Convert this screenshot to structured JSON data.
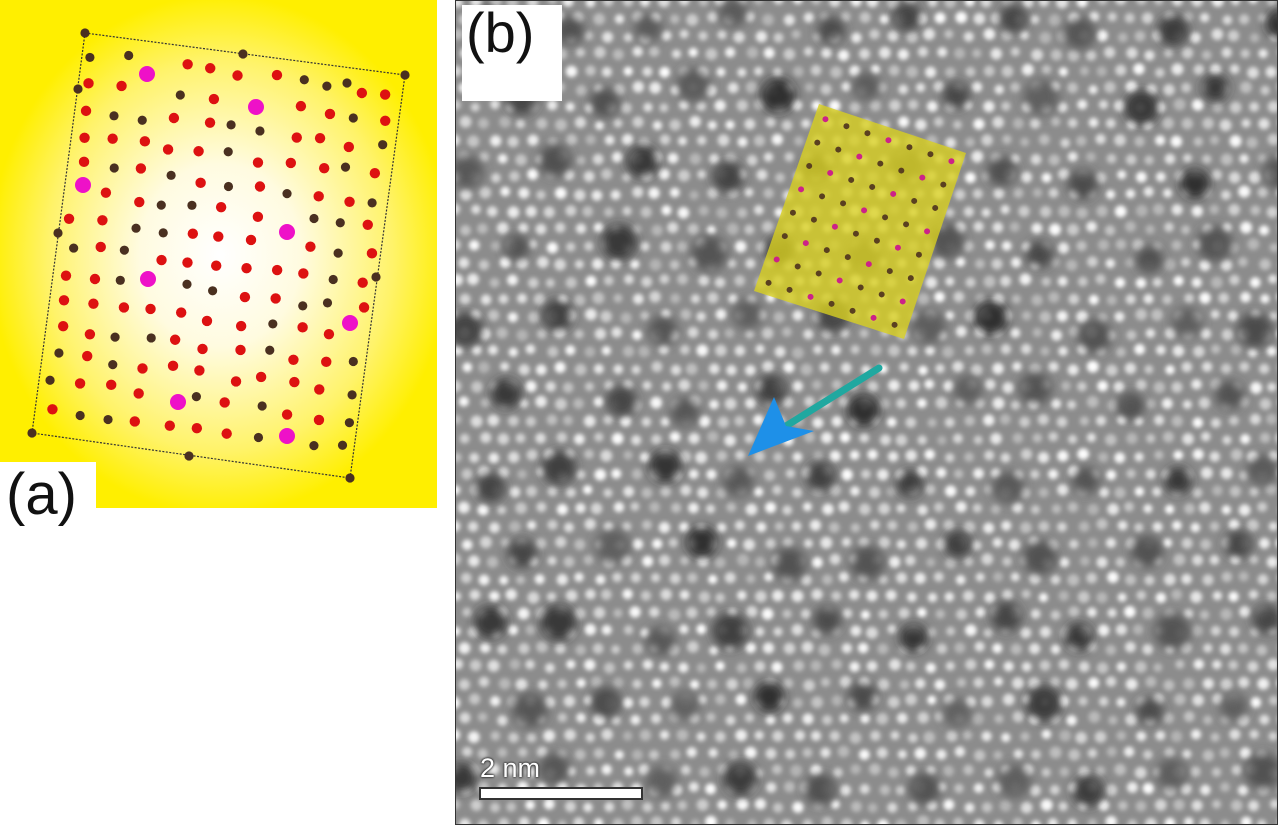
{
  "panel_a": {
    "label": "(a)",
    "background_color": "#ffef00",
    "atom_colors": {
      "large": "#ee11c8",
      "red": "#dd1111",
      "dark": "#4a3020"
    }
  },
  "panel_b": {
    "label": "(b)",
    "scale_bar": "2 nm",
    "overlay_color": "#d8d020",
    "arrow_color": "#1e90e8"
  }
}
